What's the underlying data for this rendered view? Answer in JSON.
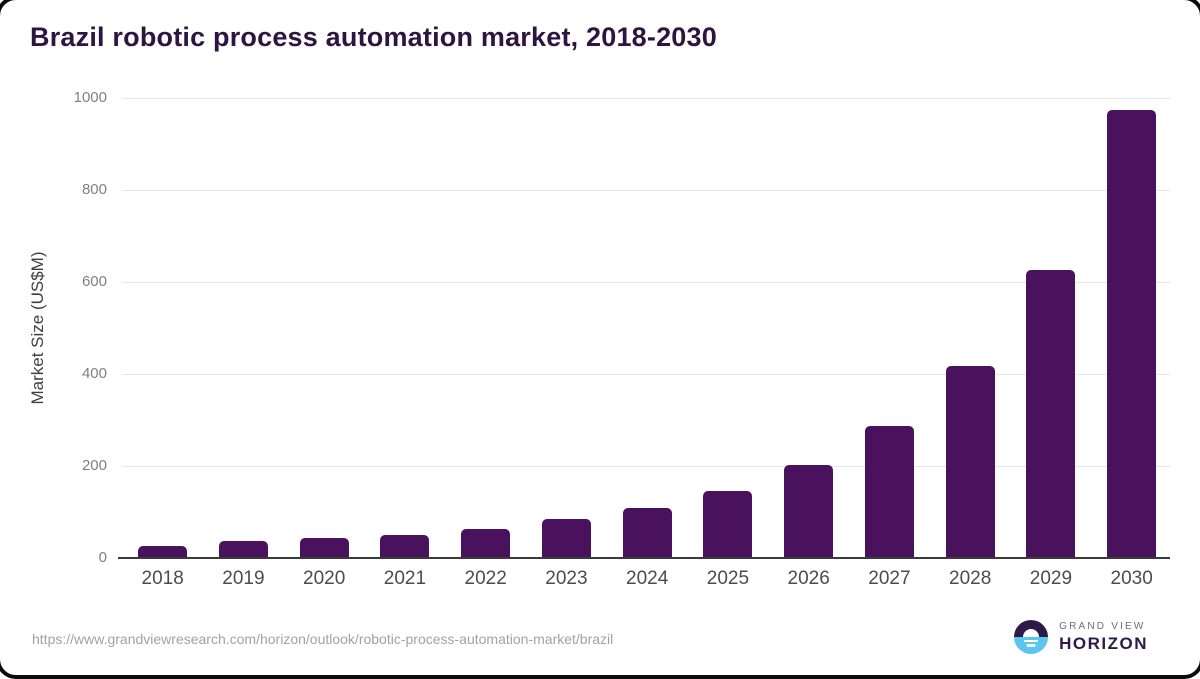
{
  "title": "Brazil robotic process automation market, 2018-2030",
  "source_url": "https://www.grandviewresearch.com/horizon/outlook/robotic-process-automation-market/brazil",
  "branding": {
    "company": "GRAND VIEW",
    "product": "HORIZON"
  },
  "colors": {
    "title": "#2d1540",
    "bar": "#4a115c",
    "grid": "#e6e6e6",
    "axis_line": "#3a3a3a",
    "tick_label": "#808080",
    "x_label": "#4c4c4c",
    "axis_title": "#3f3f3f",
    "url": "#a2a2a2",
    "logo_dark": "#2e1a47",
    "logo_blue": "#5bc6f0",
    "logo_gray": "#6d6d78"
  },
  "chart_data": {
    "type": "bar",
    "title": "Brazil robotic process automation market, 2018-2030",
    "categories": [
      "2018",
      "2019",
      "2020",
      "2021",
      "2022",
      "2023",
      "2024",
      "2025",
      "2026",
      "2027",
      "2028",
      "2029",
      "2030"
    ],
    "values": [
      26,
      38,
      43,
      51,
      64,
      84,
      108,
      146,
      202,
      286,
      418,
      627,
      975
    ],
    "unit": "US$M",
    "xlabel": "",
    "ylabel": "Market Size (US$M)",
    "ylim": [
      0,
      1000
    ],
    "yticks": [
      0,
      200,
      400,
      600,
      800,
      1000
    ],
    "grid": "horizontal",
    "legend": "none"
  }
}
